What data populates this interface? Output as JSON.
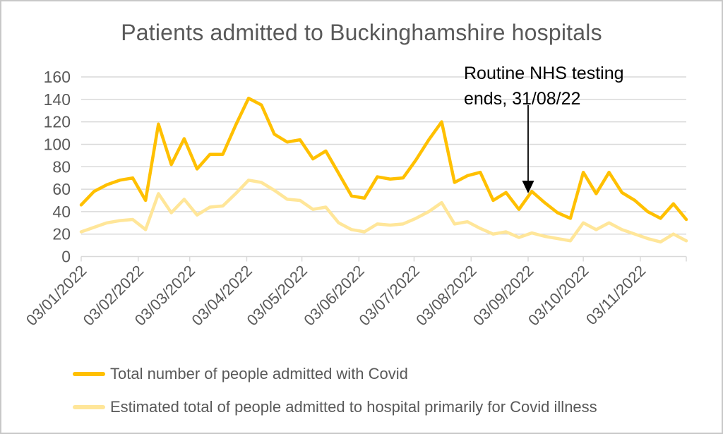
{
  "title": "Patients admitted to Buckinghamshire hospitals",
  "colors": {
    "grid": "#d9d9d9",
    "axis_text": "#595959",
    "title_text": "#595959",
    "annotation": "#000000",
    "frame_border": "#c8c8c8",
    "series_total": "#FFC000",
    "series_estimated": "#FFE699"
  },
  "chart_data": {
    "type": "line",
    "title": "Patients admitted to Buckinghamshire hospitals",
    "xlabel": "",
    "ylabel": "",
    "ylim": [
      0,
      160
    ],
    "y_tick_step": 20,
    "y_tick_values": [
      0,
      20,
      40,
      60,
      80,
      100,
      120,
      140,
      160
    ],
    "grid": true,
    "legend_position": "bottom-left",
    "x_axis_span_days": 329,
    "x_ticks": [
      {
        "label": "03/01/2022",
        "day": 0
      },
      {
        "label": "03/02/2022",
        "day": 31
      },
      {
        "label": "03/03/2022",
        "day": 59
      },
      {
        "label": "03/04/2022",
        "day": 90
      },
      {
        "label": "03/05/2022",
        "day": 120
      },
      {
        "label": "03/06/2022",
        "day": 151
      },
      {
        "label": "03/07/2022",
        "day": 181
      },
      {
        "label": "03/08/2022",
        "day": 212
      },
      {
        "label": "03/09/2022",
        "day": 243
      },
      {
        "label": "03/10/2022",
        "day": 273
      },
      {
        "label": "03/11/2022",
        "day": 304
      }
    ],
    "x_day_offsets": [
      0,
      7,
      14,
      21,
      28,
      35,
      42,
      49,
      56,
      63,
      70,
      77,
      84,
      91,
      98,
      105,
      112,
      119,
      126,
      133,
      140,
      147,
      154,
      161,
      168,
      175,
      182,
      189,
      196,
      203,
      210,
      217,
      224,
      231,
      238,
      245,
      252,
      259,
      266,
      273,
      280,
      287,
      294,
      301,
      308,
      315,
      322,
      329
    ],
    "dates": [
      "03/01/2022",
      "10/01/2022",
      "17/01/2022",
      "24/01/2022",
      "31/01/2022",
      "07/02/2022",
      "14/02/2022",
      "21/02/2022",
      "28/02/2022",
      "07/03/2022",
      "14/03/2022",
      "21/03/2022",
      "28/03/2022",
      "04/04/2022",
      "11/04/2022",
      "18/04/2022",
      "25/04/2022",
      "02/05/2022",
      "09/05/2022",
      "16/05/2022",
      "23/05/2022",
      "30/05/2022",
      "06/06/2022",
      "13/06/2022",
      "20/06/2022",
      "27/06/2022",
      "04/07/2022",
      "11/07/2022",
      "18/07/2022",
      "25/07/2022",
      "01/08/2022",
      "08/08/2022",
      "15/08/2022",
      "22/08/2022",
      "29/08/2022",
      "05/09/2022",
      "12/09/2022",
      "19/09/2022",
      "26/09/2022",
      "03/10/2022",
      "10/10/2022",
      "17/10/2022",
      "24/10/2022",
      "31/10/2022",
      "07/11/2022",
      "14/11/2022",
      "21/11/2022",
      "28/11/2022"
    ],
    "series": [
      {
        "name": "Total number of people admitted with Covid",
        "color": "#FFC000",
        "values": [
          46,
          58,
          64,
          68,
          70,
          50,
          118,
          82,
          105,
          78,
          91,
          91,
          117,
          141,
          135,
          109,
          102,
          104,
          87,
          94,
          74,
          54,
          52,
          71,
          69,
          70,
          86,
          104,
          120,
          66,
          72,
          75,
          50,
          57,
          42,
          58,
          48,
          39,
          34,
          75,
          56,
          75,
          57,
          50,
          40,
          34,
          47,
          33
        ]
      },
      {
        "name": "Estimated total of people admitted to hospital primarily for Covid illness",
        "color": "#FFE699",
        "values": [
          22,
          26,
          30,
          32,
          33,
          24,
          56,
          39,
          51,
          37,
          44,
          45,
          56,
          68,
          66,
          59,
          51,
          50,
          42,
          44,
          30,
          24,
          22,
          29,
          28,
          29,
          34,
          40,
          48,
          29,
          31,
          25,
          20,
          22,
          17,
          21,
          18,
          16,
          14,
          30,
          24,
          30,
          24,
          20,
          16,
          13,
          20,
          14
        ]
      }
    ],
    "annotation": {
      "line1": "Routine NHS testing",
      "line2": "ends, 31/08/22",
      "day_offset": 243
    }
  }
}
